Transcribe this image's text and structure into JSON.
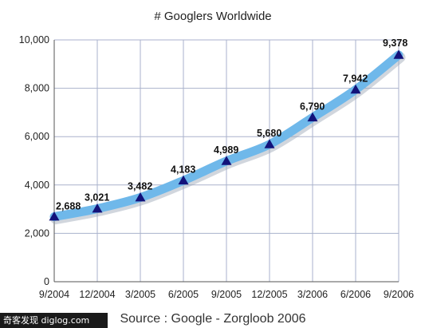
{
  "chart_data": {
    "type": "line",
    "title": "# Googlers Worldwide",
    "xlabel": "",
    "ylabel": "",
    "categories": [
      "9/2004",
      "12/2004",
      "3/2005",
      "6/2005",
      "9/2005",
      "12/2005",
      "3/2006",
      "6/2006",
      "9/2006"
    ],
    "series": [
      {
        "values": [
          2688,
          3021,
          3482,
          4183,
          4989,
          5680,
          6790,
          7942,
          9378
        ],
        "data_labels": [
          "2,688",
          "3,021",
          "3,482",
          "4,183",
          "4,989",
          "5,680",
          "6,790",
          "7,942",
          "9,378"
        ],
        "color": "#6fb8ea",
        "marker_color": "#12127a",
        "marker": "triangle"
      }
    ],
    "ylim": [
      0,
      10000
    ],
    "yticks": [
      0,
      2000,
      4000,
      6000,
      8000,
      10000
    ],
    "ytick_labels": [
      "0",
      "2,000",
      "4,000",
      "6,000",
      "8,000",
      "10,000"
    ],
    "grid": true,
    "grid_color": "#aab2cc",
    "source": "Source : Google - Zorgloob 2006"
  },
  "watermark": {
    "text": "奇客发现 diglog.com"
  }
}
